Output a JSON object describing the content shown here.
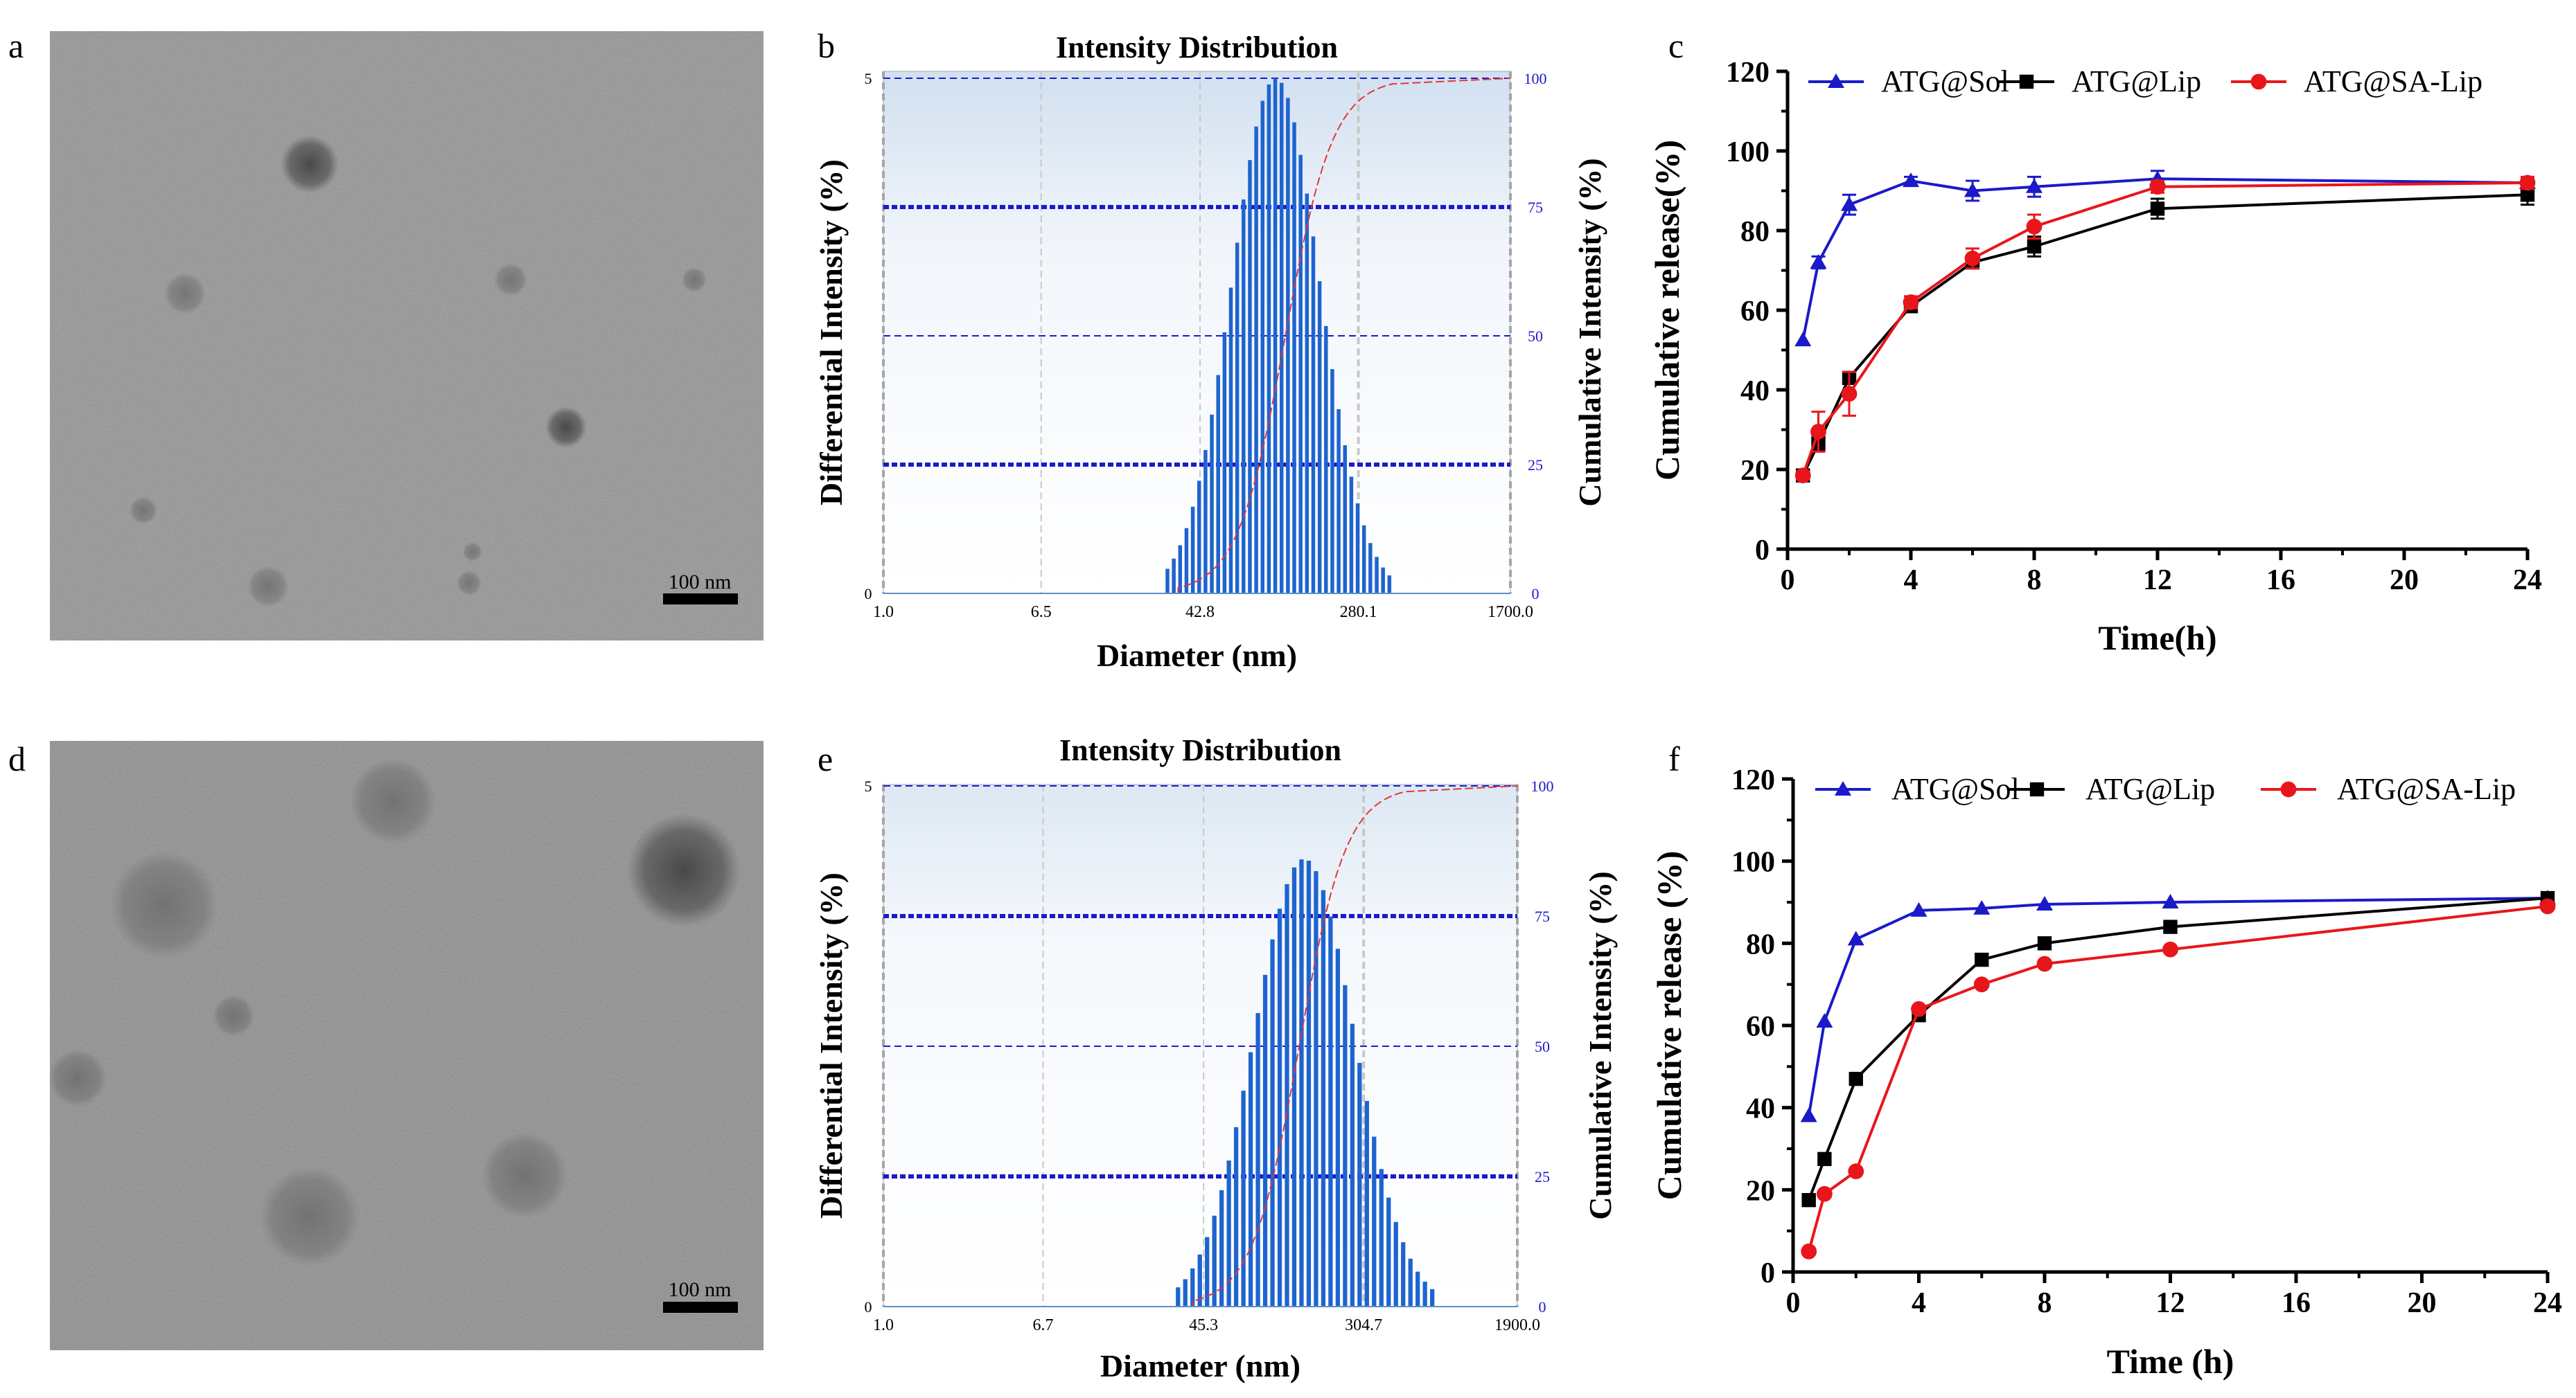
{
  "panel_letters": [
    "a",
    "b",
    "c",
    "d",
    "e",
    "f"
  ],
  "micrographs": [
    {
      "scale_bar_label": "100 nm"
    },
    {
      "scale_bar_label": "100 nm"
    }
  ],
  "chart_data": [
    {
      "id": "b",
      "type": "bar",
      "title": "Intensity Distribution",
      "xlabel": "Diameter (nm)",
      "ylabel": "Differential Intensity (%)",
      "y2label": "Cumulative Intensity (%)",
      "x_scale": "log",
      "xlim": [
        1.0,
        1700.0
      ],
      "x_ticks": [
        "1.0",
        "6.5",
        "42.8",
        "280.1",
        "1700.0"
      ],
      "ylim": [
        0,
        5
      ],
      "y_ticks": [
        "0",
        "5"
      ],
      "y2lim": [
        0,
        100
      ],
      "y2_ticks": [
        "0",
        "25",
        "50",
        "75",
        "100"
      ],
      "distribution_peak_nm": 105,
      "distribution_peak_percent": 5.0,
      "distribution_range_nm": [
        28,
        420
      ],
      "cumulative_start_nm": 33,
      "cumulative_end_nm": 420
    },
    {
      "id": "e",
      "type": "bar",
      "title": "Intensity Distribution",
      "xlabel": "Diameter (nm)",
      "ylabel": "Differential Intensity (%)",
      "y2label": "Cumulative Intensity (%)",
      "x_scale": "log",
      "xlim": [
        1.0,
        1900.0
      ],
      "x_ticks": [
        "1.0",
        "6.7",
        "45.3",
        "304.7",
        "1900.0"
      ],
      "ylim": [
        0,
        5
      ],
      "y_ticks": [
        "0",
        "5"
      ],
      "y2lim": [
        0,
        100
      ],
      "y2_ticks": [
        "0",
        "25",
        "50",
        "75",
        "100"
      ],
      "distribution_peak_nm": 150,
      "distribution_peak_percent": 4.3,
      "distribution_range_nm": [
        32,
        720
      ],
      "cumulative_start_nm": 40,
      "cumulative_end_nm": 500
    },
    {
      "id": "c",
      "type": "line",
      "title": "",
      "xlabel": "Time(h)",
      "ylabel": "Cumulative release(%)",
      "xlim": [
        0,
        24
      ],
      "x_ticks": [
        0,
        4,
        8,
        12,
        16,
        20,
        24
      ],
      "ylim": [
        0,
        120
      ],
      "y_ticks": [
        0,
        20,
        40,
        60,
        80,
        100,
        120
      ],
      "legend_position": "top",
      "x": [
        0.5,
        1,
        2,
        4,
        6,
        8,
        12,
        24
      ],
      "series": [
        {
          "name": "ATG@Sol",
          "color": "#1a1ac8",
          "marker": "triangle",
          "values": [
            52.5,
            72,
            86.5,
            92.5,
            90,
            91,
            93,
            92
          ],
          "errors": [
            0,
            1.5,
            2.5,
            1,
            2.5,
            2.5,
            2,
            1
          ]
        },
        {
          "name": "ATG@Lip",
          "color": "#000000",
          "marker": "square",
          "values": [
            18.5,
            26.5,
            43,
            61,
            72,
            76,
            85.5,
            89
          ],
          "errors": [
            1,
            2,
            1.5,
            1,
            1.5,
            2.5,
            2.5,
            2.5
          ]
        },
        {
          "name": "ATG@SA-Lip",
          "color": "#e8161b",
          "marker": "circle",
          "values": [
            18.5,
            29.5,
            39,
            62,
            73,
            81,
            91,
            92
          ],
          "errors": [
            1,
            5,
            5.5,
            1.5,
            2.5,
            3,
            1.5,
            1.5
          ]
        }
      ]
    },
    {
      "id": "f",
      "type": "line",
      "title": "",
      "xlabel": "Time (h)",
      "ylabel": "Cumulative release (%)",
      "xlim": [
        0,
        24
      ],
      "x_ticks": [
        0,
        4,
        8,
        12,
        16,
        20,
        24
      ],
      "ylim": [
        0,
        120
      ],
      "y_ticks": [
        0,
        20,
        40,
        60,
        80,
        100,
        120
      ],
      "legend_position": "top",
      "x": [
        0.5,
        1,
        2,
        4,
        6,
        8,
        12,
        24
      ],
      "series": [
        {
          "name": "ATG@Sol",
          "color": "#1a1ac8",
          "marker": "triangle",
          "values": [
            38,
            61,
            81,
            88,
            88.5,
            89.5,
            90,
            91
          ]
        },
        {
          "name": "ATG@Lip",
          "color": "#000000",
          "marker": "square",
          "values": [
            17.5,
            27.5,
            47,
            62.5,
            76,
            80,
            84,
            91
          ]
        },
        {
          "name": "ATG@SA-Lip",
          "color": "#e8161b",
          "marker": "circle",
          "values": [
            5,
            19,
            24.5,
            64,
            70,
            75,
            78.5,
            89
          ]
        }
      ]
    }
  ]
}
